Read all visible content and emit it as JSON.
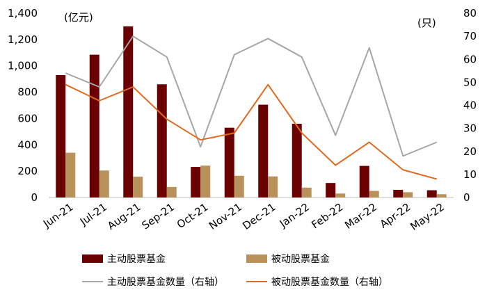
{
  "chart_data": {
    "type": "bar",
    "categories": [
      "Jun-21",
      "Jul-21",
      "Aug-21",
      "Sep-21",
      "Oct-21",
      "Nov-21",
      "Dec-21",
      "Jan-22",
      "Feb-22",
      "Mar-22",
      "Apr-22",
      "May-22"
    ],
    "left_unit": "(亿元)",
    "right_unit": "(只)",
    "ylim": [
      0,
      1400
    ],
    "yticks": [
      0,
      200,
      400,
      600,
      800,
      1000,
      1200,
      1400
    ],
    "yticks_labels": [
      "0",
      "200",
      "400",
      "600",
      "800",
      "1,000",
      "1,200",
      "1,400"
    ],
    "y2lim": [
      0,
      80
    ],
    "y2ticks": [
      0,
      10,
      20,
      30,
      40,
      50,
      60,
      70,
      80
    ],
    "legend_position": "bottom",
    "grid": false,
    "series": [
      {
        "name": "主动股票基金",
        "kind": "bar",
        "axis": "left",
        "color": "#6b0000",
        "values": [
          930,
          1085,
          1300,
          860,
          232,
          530,
          705,
          560,
          110,
          240,
          58,
          55
        ]
      },
      {
        "name": "被动股票基金",
        "kind": "bar",
        "axis": "left",
        "color": "#b8925a",
        "values": [
          340,
          205,
          158,
          80,
          242,
          165,
          160,
          75,
          30,
          50,
          40,
          25
        ]
      },
      {
        "name": "主动股票基金数量（右轴）",
        "kind": "line",
        "axis": "right",
        "color": "#a6a6a6",
        "values": [
          54,
          48,
          70,
          61,
          22,
          62,
          69,
          61,
          27,
          65,
          18,
          24
        ]
      },
      {
        "name": "被动股票基金数量（右轴）",
        "kind": "line",
        "axis": "right",
        "color": "#e06b1f",
        "values": [
          49,
          42,
          48,
          34,
          25,
          28,
          49,
          28,
          14,
          24,
          12,
          8
        ]
      }
    ]
  }
}
